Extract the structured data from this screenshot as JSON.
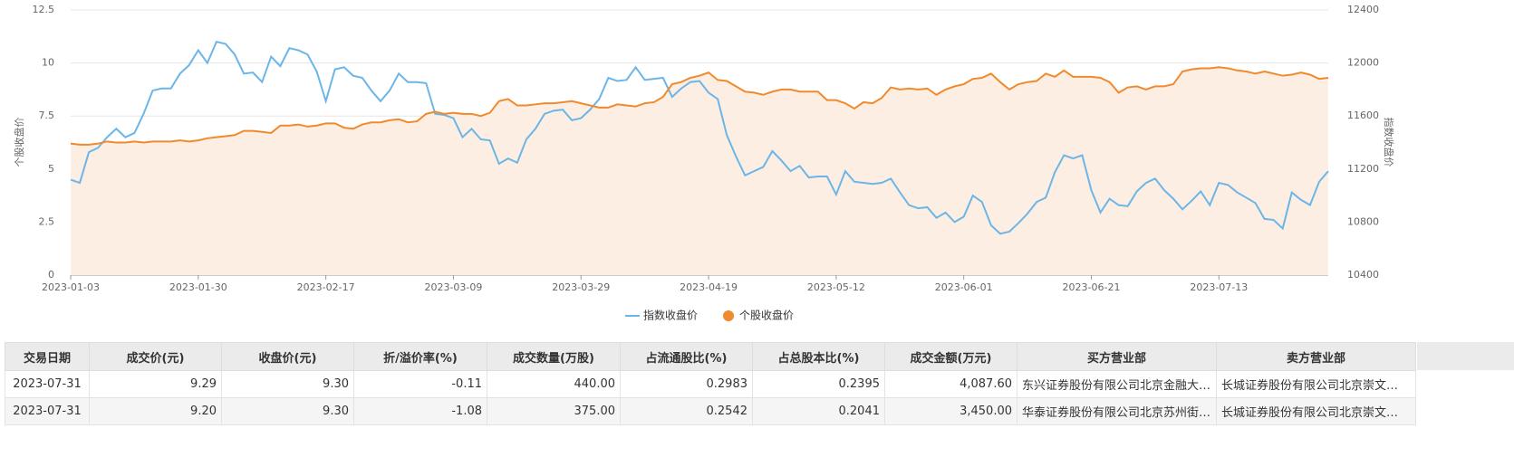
{
  "chart_data": {
    "type": "line",
    "y_label": "个股收盘价",
    "y2_label": "指数收盘价",
    "categories": [
      "2023-01-03",
      null,
      null,
      null,
      null,
      null,
      null,
      null,
      null,
      null,
      null,
      null,
      null,
      null,
      "2023-01-30",
      null,
      null,
      null,
      null,
      null,
      null,
      null,
      null,
      null,
      null,
      null,
      null,
      null,
      "2023-02-17",
      null,
      null,
      null,
      null,
      null,
      null,
      null,
      null,
      null,
      null,
      null,
      null,
      null,
      "2023-03-09",
      null,
      null,
      null,
      null,
      null,
      null,
      null,
      null,
      null,
      null,
      null,
      null,
      null,
      "2023-03-29",
      null,
      null,
      null,
      null,
      null,
      null,
      null,
      null,
      null,
      null,
      null,
      null,
      null,
      "2023-04-19",
      null,
      null,
      null,
      null,
      null,
      null,
      null,
      null,
      null,
      null,
      null,
      null,
      null,
      "2023-05-12",
      null,
      null,
      null,
      null,
      null,
      null,
      null,
      null,
      null,
      null,
      null,
      null,
      null,
      "2023-06-01",
      null,
      null,
      null,
      null,
      null,
      null,
      null,
      null,
      null,
      null,
      null,
      null,
      null,
      "2023-06-21",
      null,
      null,
      null,
      null,
      null,
      null,
      null,
      null,
      null,
      null,
      null,
      null,
      null,
      "2023-07-13",
      null,
      null,
      null,
      null,
      null,
      null,
      null,
      null,
      null,
      null,
      null,
      null
    ],
    "series": [
      {
        "name": "指数收盘价",
        "color": "#6bb6e6",
        "axis": "y2",
        "area": false,
        "values": [
          11120,
          11096,
          11328,
          11360,
          11440,
          11504,
          11440,
          11472,
          11616,
          11792,
          11808,
          11808,
          11920,
          11984,
          12096,
          12000,
          12160,
          12144,
          12064,
          11920,
          11928,
          11856,
          12048,
          11976,
          12112,
          12096,
          12064,
          11936,
          11712,
          11952,
          11968,
          11904,
          11888,
          11792,
          11712,
          11792,
          11920,
          11856,
          11856,
          11848,
          11616,
          11608,
          11584,
          11440,
          11504,
          11424,
          11416,
          11240,
          11280,
          11248,
          11424,
          11504,
          11616,
          11640,
          11648,
          11568,
          11584,
          11648,
          11728,
          11888,
          11864,
          11872,
          11968,
          11872,
          11880,
          11888,
          11744,
          11808,
          11856,
          11864,
          11776,
          11728,
          11456,
          11296,
          11152,
          11184,
          11216,
          11336,
          11264,
          11184,
          11224,
          11136,
          11144,
          11144,
          11008,
          11184,
          11104,
          11096,
          11088,
          11096,
          11128,
          11024,
          10928,
          10904,
          10912,
          10832,
          10872,
          10800,
          10840,
          11000,
          10952,
          10776,
          10712,
          10728,
          10792,
          10864,
          10952,
          10984,
          11176,
          11304,
          11280,
          11304,
          11040,
          10872,
          10976,
          10928,
          10920,
          11032,
          11096,
          11128,
          11040,
          10976,
          10896,
          10960,
          11032,
          10928,
          11096,
          11080,
          11024,
          10984,
          10944,
          10824,
          10816,
          10752,
          11024,
          10968,
          10928,
          11104,
          11184
        ]
      },
      {
        "name": "个股收盘价",
        "color": "#f08a2c",
        "area": true,
        "area_color": "#fdeee4",
        "values": [
          6.2,
          6.15,
          6.15,
          6.2,
          6.3,
          6.25,
          6.25,
          6.3,
          6.25,
          6.3,
          6.3,
          6.3,
          6.35,
          6.3,
          6.35,
          6.45,
          6.5,
          6.55,
          6.6,
          6.8,
          6.8,
          6.75,
          6.7,
          7.05,
          7.05,
          7.1,
          7.0,
          7.05,
          7.15,
          7.15,
          6.95,
          6.9,
          7.1,
          7.2,
          7.2,
          7.3,
          7.35,
          7.2,
          7.25,
          7.6,
          7.7,
          7.6,
          7.65,
          7.6,
          7.6,
          7.5,
          7.65,
          8.2,
          8.3,
          8.0,
          8.0,
          8.05,
          8.1,
          8.1,
          8.15,
          8.2,
          8.1,
          8.0,
          7.9,
          7.9,
          8.05,
          8.0,
          7.95,
          8.1,
          8.15,
          8.4,
          9.0,
          9.1,
          9.3,
          9.4,
          9.55,
          9.2,
          9.15,
          8.9,
          8.65,
          8.6,
          8.5,
          8.65,
          8.75,
          8.75,
          8.65,
          8.65,
          8.65,
          8.25,
          8.25,
          8.1,
          7.85,
          8.15,
          8.1,
          8.35,
          8.85,
          8.75,
          8.8,
          8.75,
          8.8,
          8.5,
          8.75,
          8.9,
          9.0,
          9.25,
          9.3,
          9.5,
          9.1,
          8.75,
          9.0,
          9.1,
          9.15,
          9.5,
          9.35,
          9.65,
          9.35,
          9.35,
          9.35,
          9.3,
          9.1,
          8.6,
          8.85,
          8.9,
          8.75,
          8.9,
          8.9,
          9.0,
          9.6,
          9.7,
          9.75,
          9.75,
          9.8,
          9.75,
          9.65,
          9.6,
          9.5,
          9.6,
          9.5,
          9.4,
          9.45,
          9.55,
          9.45,
          9.25,
          9.3
        ]
      }
    ],
    "ylim": [
      0,
      12.5
    ],
    "yticks": [
      0,
      2.5,
      5,
      7.5,
      10,
      12.5
    ],
    "y2lim": [
      10400,
      12400
    ],
    "y2ticks": [
      10400,
      10800,
      11200,
      11600,
      12000,
      12400
    ],
    "grid": true,
    "legend": "bottom"
  },
  "table": {
    "columns": [
      "交易日期",
      "成交价(元)",
      "收盘价(元)",
      "折/溢价率(%)",
      "成交数量(万股)",
      "占流通股比(%)",
      "占总股本比(%)",
      "成交金额(万元)",
      "买方营业部",
      "卖方营业部"
    ],
    "rows": [
      [
        "2023-07-31",
        "9.29",
        "9.30",
        "-0.11",
        "440.00",
        "0.2983",
        "0.2395",
        "4,087.60",
        "东兴证券股份有限公司北京金融大…",
        "长城证券股份有限公司北京崇文…"
      ],
      [
        "2023-07-31",
        "9.20",
        "9.30",
        "-1.08",
        "375.00",
        "0.2542",
        "0.2041",
        "3,450.00",
        "华泰证券股份有限公司北京苏州街…",
        "长城证券股份有限公司北京崇文…"
      ]
    ]
  }
}
